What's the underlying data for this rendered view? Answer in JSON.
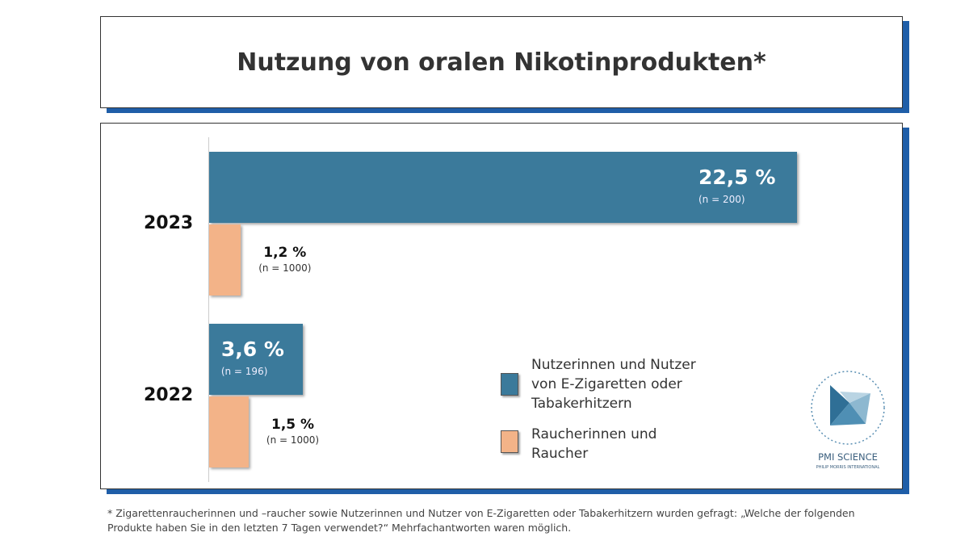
{
  "chart_data": {
    "type": "bar",
    "orientation": "horizontal",
    "title": "Nutzung von oralen Nikotinprodukten*",
    "categories": [
      "2023",
      "2022"
    ],
    "series": [
      {
        "name": "Nutzerinnen und Nutzer von E-Zigaretten oder Tabakerhitzern",
        "color": "#3b7a9b",
        "values": [
          22.5,
          3.6
        ],
        "value_labels": [
          "22,5 %",
          "3,6 %"
        ],
        "sample_labels": [
          "(n = 200)",
          "(n = 196)"
        ]
      },
      {
        "name": "Raucherinnen und Raucher",
        "color": "#f3b388",
        "values": [
          1.2,
          1.5
        ],
        "value_labels": [
          "1,2 %",
          "1,5 %"
        ],
        "sample_labels": [
          "(n = 1000)",
          "(n = 1000)"
        ]
      }
    ],
    "footnote": "* Zigarettenraucherinnen und –raucher sowie Nutzerinnen und Nutzer von E-Zigaretten oder Tabakerhitzern wurden gefragt: „Welche der folgenden Produkte haben Sie in den letzten 7 Tagen verwendet?“ Mehrfachantworten waren möglich.",
    "logo": {
      "title": "PMI SCIENCE",
      "subtitle": "PHILIP MORRIS INTERNATIONAL"
    }
  }
}
